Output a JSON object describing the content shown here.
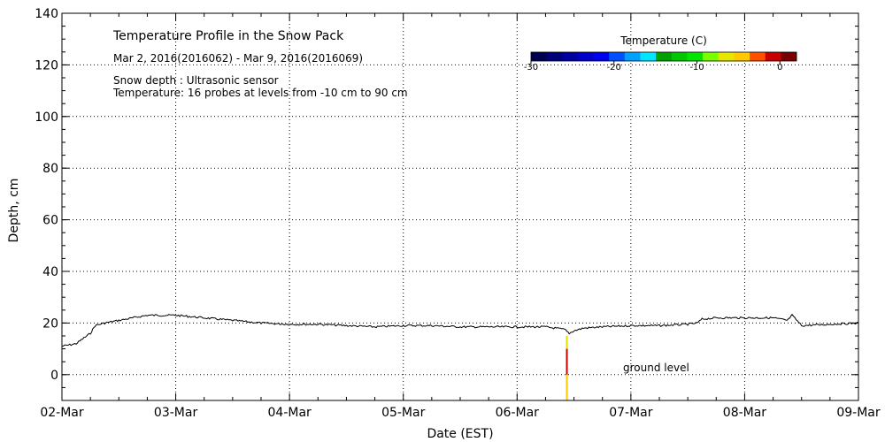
{
  "chart_data": {
    "type": "line",
    "title": "Temperature Profile in the Snow Pack",
    "subtitle": "Mar  2, 2016(2016062) - Mar  9, 2016(2016069)",
    "notes": [
      "Snow depth : Ultrasonic sensor",
      "Temperature: 16 probes at levels from -10 cm to 90 cm"
    ],
    "xlabel": "Date (EST)",
    "ylabel": "Depth, cm",
    "x_tick_labels": [
      "02-Mar",
      "03-Mar",
      "04-Mar",
      "05-Mar",
      "06-Mar",
      "07-Mar",
      "08-Mar",
      "09-Mar"
    ],
    "xlim": [
      "2016-03-02",
      "2016-03-09"
    ],
    "ylim": [
      -10,
      140
    ],
    "y_ticks": [
      0,
      20,
      40,
      60,
      80,
      100,
      120,
      140
    ],
    "grid": true,
    "annotation": "ground level",
    "series": [
      {
        "color": "#000000",
        "x": [
          "2016-03-02 00:00",
          "2016-03-02 03:00",
          "2016-03-02 06:00",
          "2016-03-02 07:00",
          "2016-03-02 09:00",
          "2016-03-02 12:00",
          "2016-03-02 18:00",
          "2016-03-03 00:00",
          "2016-03-03 06:00",
          "2016-03-03 12:00",
          "2016-03-03 18:00",
          "2016-03-04 00:00",
          "2016-03-04 06:00",
          "2016-03-04 12:00",
          "2016-03-04 18:00",
          "2016-03-05 00:00",
          "2016-03-05 06:00",
          "2016-03-05 12:00",
          "2016-03-05 18:00",
          "2016-03-06 00:00",
          "2016-03-06 06:00",
          "2016-03-06 10:00",
          "2016-03-06 11:00",
          "2016-03-06 12:00",
          "2016-03-06 14:00",
          "2016-03-06 18:00",
          "2016-03-07 00:00",
          "2016-03-07 06:00",
          "2016-03-07 12:00",
          "2016-03-07 14:00",
          "2016-03-07 15:00",
          "2016-03-07 18:00",
          "2016-03-08 00:00",
          "2016-03-08 06:00",
          "2016-03-08 09:00",
          "2016-03-08 10:00",
          "2016-03-08 12:00",
          "2016-03-08 18:00",
          "2016-03-09 00:00"
        ],
        "y": [
          11,
          12,
          16,
          19,
          20,
          21,
          23,
          23,
          22,
          21,
          20,
          19.5,
          19.5,
          19,
          18.5,
          19,
          19,
          18.5,
          18.5,
          18.5,
          18.5,
          17.5,
          16,
          17,
          18,
          18.5,
          19,
          19,
          19.5,
          20,
          21.5,
          22,
          22,
          22,
          21,
          23,
          19,
          19.5,
          20
        ]
      }
    ],
    "temperature_profile": {
      "x": "2016-03-06 10:30",
      "levels_cm": [
        -10,
        0,
        10,
        15
      ],
      "colors": [
        "#ffc800",
        "#c80000",
        "#e0e000",
        "#00c800"
      ]
    },
    "colorbar": {
      "title": "Temperature (C)",
      "range": [
        -30,
        2
      ],
      "tick_values": [
        -30,
        -20,
        -10,
        0
      ],
      "tick_labels": [
        "-30",
        "-20",
        "-10",
        "0"
      ],
      "colors": [
        "#000050",
        "#000078",
        "#0000a0",
        "#0000c8",
        "#0000f0",
        "#0050ff",
        "#00a0ff",
        "#00e6ff",
        "#00a000",
        "#00c800",
        "#00e600",
        "#78ff00",
        "#e6e600",
        "#ffc800",
        "#ff5000",
        "#c80000",
        "#780000"
      ]
    }
  }
}
